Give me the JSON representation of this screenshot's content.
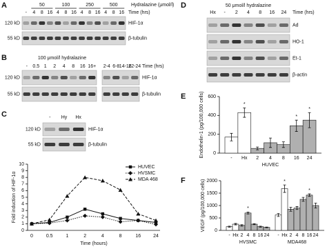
{
  "panels": {
    "A": {
      "label": "A",
      "header": "Hydralazine (μmol/l)",
      "groups": [
        "50",
        "100",
        "250",
        "500"
      ],
      "lanes": [
        "-",
        "4",
        "8",
        "16",
        "4",
        "8",
        "16",
        "4",
        "8",
        "16",
        "4",
        "8",
        "16"
      ],
      "lane_axis": "Time (hrs)",
      "rows": [
        {
          "kd": "120 kD",
          "name": "HIF-1α"
        },
        {
          "kd": "55 kD",
          "name": "β-tubulin"
        }
      ]
    },
    "B": {
      "label": "B",
      "header": "100 μmol/l hydralazine",
      "lanes": [
        "-",
        "0.5",
        "1",
        "2",
        "4",
        "8",
        "16",
        "16+",
        "2-4",
        "6-8",
        "14-16",
        "22-24"
      ],
      "lane_axis": "Time (hrs)",
      "rows": [
        {
          "kd": "120 kD",
          "name": "HIF-1α"
        },
        {
          "kd": "55 kD",
          "name": "β-tubulin"
        }
      ]
    },
    "C": {
      "label": "C",
      "lanes": [
        "-",
        "Hy",
        "Hx"
      ],
      "rows": [
        {
          "kd": "120 kD",
          "name": "HIF-1α"
        },
        {
          "kd": "55 kD",
          "name": "β-tubulin"
        }
      ]
    },
    "D": {
      "label": "D",
      "header": "50 μmol/l hydralazine",
      "lanes": [
        "Hx",
        "-",
        "2",
        "4",
        "8",
        "16",
        "24"
      ],
      "lane_axis": "Time (hrs)",
      "rows": [
        {
          "name": "Ad"
        },
        {
          "name": "HO-1"
        },
        {
          "name": "Et-1"
        },
        {
          "name": "β-actin"
        }
      ]
    }
  },
  "chart_data": [
    {
      "type": "line",
      "x_label": "Time (hours)",
      "y_label": "Fold induction of HIF-1α",
      "categories": [
        "0",
        "0.5",
        "1",
        "2",
        "4",
        "8",
        "16",
        "24"
      ],
      "ylim": [
        0,
        10
      ],
      "yticks": [
        0,
        1,
        2,
        3,
        4,
        5,
        6,
        7,
        8,
        9,
        10
      ],
      "series": [
        {
          "name": "HUVEC",
          "color": "#111111",
          "marker": "square",
          "dash": "solid",
          "values": [
            1,
            1.2,
            2,
            3.2,
            2.5,
            1.8,
            1.5,
            1.2
          ]
        },
        {
          "name": "HVSMC",
          "color": "#111111",
          "marker": "diamond",
          "dash": "dotted",
          "values": [
            1,
            1.1,
            1.5,
            2.2,
            2,
            1.3,
            1.5,
            0.9
          ]
        },
        {
          "name": "MDA 468",
          "color": "#111111",
          "marker": "triangle",
          "dash": "dashed",
          "values": [
            1,
            1.6,
            5.2,
            8,
            7.5,
            6.1,
            2.5,
            1.5
          ]
        }
      ]
    },
    {
      "type": "bar",
      "label": "E",
      "y_label": "Endothelin-1 (pg/100,000 cells)",
      "categories": [
        "-",
        "Hx",
        "2",
        "4",
        "8",
        "16",
        "24"
      ],
      "colors": [
        "#ffffff",
        "#ffffff",
        "#b0b0b0",
        "#b0b0b0",
        "#b0b0b0",
        "#b0b0b0",
        "#b0b0b0"
      ],
      "ylim": [
        0,
        600
      ],
      "yticks": [
        0,
        200,
        400,
        600
      ],
      "series": [
        {
          "name": "HUVEC",
          "values": [
            170,
            430,
            50,
            110,
            90,
            290,
            350
          ],
          "errors": [
            40,
            50,
            15,
            50,
            30,
            60,
            80
          ]
        }
      ],
      "annotations": [
        {
          "text": "*",
          "series": 0,
          "index": 1
        },
        {
          "text": "*",
          "series": 0,
          "index": 5
        },
        {
          "text": "*",
          "series": 0,
          "index": 6
        }
      ]
    },
    {
      "type": "bar",
      "label": "F",
      "y_label": "VEGF (pg/100,000 cells)",
      "categories": [
        "-",
        "Hx",
        "2",
        "4",
        "8",
        "16",
        "24"
      ],
      "colors": [
        "#ffffff",
        "#ffffff",
        "#b0b0b0",
        "#b0b0b0",
        "#b0b0b0",
        "#b0b0b0",
        "#b0b0b0"
      ],
      "ylim": [
        0,
        2000
      ],
      "yticks": [
        0,
        500,
        1000,
        1500,
        2000
      ],
      "series": [
        {
          "name": "HVSMC",
          "values": [
            150,
            250,
            200,
            700,
            250,
            150,
            120
          ],
          "errors": [
            20,
            30,
            30,
            40,
            20,
            20,
            15
          ]
        },
        {
          "name": "MDA468",
          "values": [
            620,
            1680,
            850,
            900,
            1250,
            1420,
            1000
          ],
          "errors": [
            60,
            150,
            80,
            60,
            80,
            50,
            100
          ]
        }
      ],
      "annotations": [
        {
          "text": "*",
          "series": 0,
          "index": 3
        },
        {
          "text": "*",
          "series": 1,
          "index": 1
        },
        {
          "text": "*",
          "series": 1,
          "index": 5
        }
      ]
    }
  ]
}
